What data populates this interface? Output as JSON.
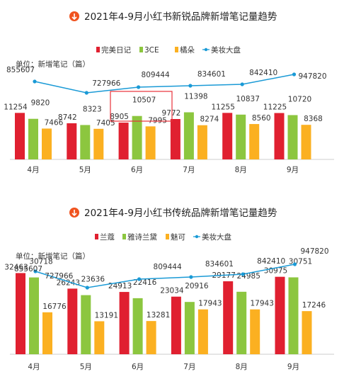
{
  "chart_data": [
    {
      "type": "bar",
      "title": "2021年4-9月小红书新锐品牌新增笔记量趋势",
      "unit_note": "单位：新增笔记（篇）",
      "categories": [
        "4月",
        "5月",
        "6月",
        "7月",
        "8月",
        "9月"
      ],
      "series": [
        {
          "name": "完美日记",
          "color": "#e02030",
          "values": [
            11254,
            8742,
            8905,
            9772,
            11255,
            11225
          ]
        },
        {
          "name": "3CE",
          "color": "#8cc63f",
          "values": [
            9820,
            8323,
            10507,
            11398,
            10837,
            10720
          ]
        },
        {
          "name": "橘朵",
          "color": "#fbb021",
          "values": [
            7466,
            7405,
            7995,
            8274,
            8560,
            8368
          ]
        }
      ],
      "line_series": {
        "name": "美妆大盘",
        "color": "#1a9ad6",
        "values": [
          855607,
          727966,
          809444,
          834601,
          842410,
          947820
        ]
      },
      "legend_position": "top",
      "grid": false
    },
    {
      "type": "bar",
      "title": "2021年4-9月小红书传统品牌新增笔记量趋势",
      "unit_note": "单位：新增笔记（篇）",
      "categories": [
        "4月",
        "5月",
        "6月",
        "7月",
        "8月",
        "9月"
      ],
      "series": [
        {
          "name": "兰蔻",
          "color": "#e02030",
          "values": [
            32463,
            26243,
            24913,
            23034,
            29177,
            30975
          ]
        },
        {
          "name": "雅诗兰黛",
          "color": "#8cc63f",
          "values": [
            30718,
            23636,
            22416,
            20916,
            24985,
            30751
          ]
        },
        {
          "name": "魅可",
          "color": "#fbb021",
          "values": [
            16776,
            13191,
            13281,
            17943,
            17943,
            17246
          ]
        }
      ],
      "line_series": {
        "name": "美妆大盘",
        "color": "#1a9ad6",
        "values": [
          855607,
          727966,
          809444,
          834601,
          842410,
          947820
        ]
      },
      "legend_position": "top",
      "grid": false
    }
  ]
}
